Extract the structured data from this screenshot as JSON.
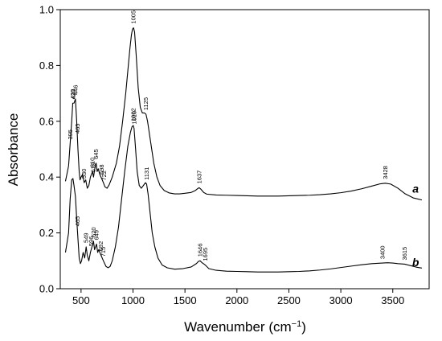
{
  "chart_data": {
    "type": "line",
    "xlabel": "Wavenumber (cm",
    "xlabel_sup": "−1",
    "xlabel_close": ")",
    "ylabel": "Absorbance",
    "xlim": [
      300,
      3850
    ],
    "ylim": [
      0.0,
      1.0
    ],
    "xticks": [
      {
        "value": 500,
        "label": "500"
      },
      {
        "value": 1000,
        "label": "1000"
      },
      {
        "value": 1500,
        "label": "1500"
      },
      {
        "value": 2000,
        "label": "2000"
      },
      {
        "value": 2500,
        "label": "2500"
      },
      {
        "value": 3000,
        "label": "3000"
      },
      {
        "value": 3500,
        "label": "3500"
      }
    ],
    "yticks": [
      {
        "value": 0.0,
        "label": "0.0"
      },
      {
        "value": 0.2,
        "label": "0.2"
      },
      {
        "value": 0.4,
        "label": "0.4"
      },
      {
        "value": 0.6,
        "label": "0.6"
      },
      {
        "value": 0.8,
        "label": "0.8"
      },
      {
        "value": 1.0,
        "label": "1.0"
      }
    ],
    "grid": false,
    "series": [
      {
        "name": "a",
        "label_position": [
          3720,
          0.345
        ],
        "points": [
          [
            350,
            0.385
          ],
          [
            380,
            0.44
          ],
          [
            395,
            0.52
          ],
          [
            410,
            0.6
          ],
          [
            420,
            0.665
          ],
          [
            432,
            0.665
          ],
          [
            446,
            0.68
          ],
          [
            458,
            0.6
          ],
          [
            470,
            0.5
          ],
          [
            482,
            0.42
          ],
          [
            490,
            0.39
          ],
          [
            500,
            0.4
          ],
          [
            515,
            0.41
          ],
          [
            530,
            0.38
          ],
          [
            545,
            0.39
          ],
          [
            560,
            0.36
          ],
          [
            575,
            0.37
          ],
          [
            590,
            0.4
          ],
          [
            610,
            0.42
          ],
          [
            620,
            0.4
          ],
          [
            632,
            0.43
          ],
          [
            645,
            0.45
          ],
          [
            655,
            0.42
          ],
          [
            665,
            0.43
          ],
          [
            680,
            0.41
          ],
          [
            698,
            0.395
          ],
          [
            715,
            0.38
          ],
          [
            730,
            0.365
          ],
          [
            750,
            0.36
          ],
          [
            770,
            0.372
          ],
          [
            800,
            0.4
          ],
          [
            840,
            0.45
          ],
          [
            870,
            0.51
          ],
          [
            900,
            0.6
          ],
          [
            930,
            0.7
          ],
          [
            950,
            0.78
          ],
          [
            970,
            0.86
          ],
          [
            985,
            0.91
          ],
          [
            995,
            0.93
          ],
          [
            1005,
            0.935
          ],
          [
            1015,
            0.92
          ],
          [
            1030,
            0.84
          ],
          [
            1050,
            0.72
          ],
          [
            1070,
            0.65
          ],
          [
            1090,
            0.63
          ],
          [
            1110,
            0.63
          ],
          [
            1125,
            0.625
          ],
          [
            1140,
            0.6
          ],
          [
            1160,
            0.55
          ],
          [
            1180,
            0.5
          ],
          [
            1200,
            0.45
          ],
          [
            1230,
            0.4
          ],
          [
            1260,
            0.37
          ],
          [
            1300,
            0.352
          ],
          [
            1350,
            0.343
          ],
          [
            1400,
            0.34
          ],
          [
            1450,
            0.34
          ],
          [
            1500,
            0.342
          ],
          [
            1560,
            0.345
          ],
          [
            1600,
            0.352
          ],
          [
            1620,
            0.358
          ],
          [
            1637,
            0.362
          ],
          [
            1655,
            0.356
          ],
          [
            1680,
            0.345
          ],
          [
            1710,
            0.339
          ],
          [
            1800,
            0.336
          ],
          [
            1900,
            0.335
          ],
          [
            2000,
            0.334
          ],
          [
            2100,
            0.333
          ],
          [
            2200,
            0.332
          ],
          [
            2300,
            0.332
          ],
          [
            2400,
            0.332
          ],
          [
            2500,
            0.333
          ],
          [
            2600,
            0.334
          ],
          [
            2700,
            0.335
          ],
          [
            2800,
            0.337
          ],
          [
            2900,
            0.34
          ],
          [
            3000,
            0.344
          ],
          [
            3100,
            0.35
          ],
          [
            3200,
            0.358
          ],
          [
            3300,
            0.368
          ],
          [
            3380,
            0.376
          ],
          [
            3428,
            0.378
          ],
          [
            3480,
            0.375
          ],
          [
            3550,
            0.36
          ],
          [
            3620,
            0.34
          ],
          [
            3700,
            0.325
          ],
          [
            3780,
            0.318
          ]
        ],
        "peaks": [
          {
            "x": 395,
            "label": "395"
          },
          {
            "x": 420,
            "label": "420"
          },
          {
            "x": 446,
            "label": "446"
          },
          {
            "x": 427,
            "label": "427"
          },
          {
            "x": 465,
            "label": "465"
          },
          {
            "x": 530,
            "label": "530"
          },
          {
            "x": 610,
            "label": "610"
          },
          {
            "x": 619,
            "label": "619"
          },
          {
            "x": 645,
            "label": "645"
          },
          {
            "x": 698,
            "label": "698"
          },
          {
            "x": 722,
            "label": "722"
          },
          {
            "x": 1005,
            "label": "1005"
          },
          {
            "x": 1125,
            "label": "1125"
          },
          {
            "x": 1637,
            "label": "1637"
          },
          {
            "x": 3428,
            "label": "3428"
          }
        ]
      },
      {
        "name": "b",
        "label_position": [
          3720,
          0.08
        ],
        "points": [
          [
            350,
            0.13
          ],
          [
            380,
            0.2
          ],
          [
            395,
            0.32
          ],
          [
            410,
            0.39
          ],
          [
            422,
            0.395
          ],
          [
            432,
            0.37
          ],
          [
            446,
            0.33
          ],
          [
            458,
            0.25
          ],
          [
            470,
            0.18
          ],
          [
            482,
            0.11
          ],
          [
            494,
            0.09
          ],
          [
            505,
            0.1
          ],
          [
            520,
            0.13
          ],
          [
            535,
            0.11
          ],
          [
            549,
            0.15
          ],
          [
            560,
            0.12
          ],
          [
            575,
            0.1
          ],
          [
            590,
            0.13
          ],
          [
            605,
            0.15
          ],
          [
            620,
            0.17
          ],
          [
            630,
            0.14
          ],
          [
            649,
            0.16
          ],
          [
            660,
            0.13
          ],
          [
            670,
            0.14
          ],
          [
            692,
            0.12
          ],
          [
            715,
            0.1
          ],
          [
            740,
            0.08
          ],
          [
            760,
            0.075
          ],
          [
            780,
            0.08
          ],
          [
            800,
            0.1
          ],
          [
            830,
            0.15
          ],
          [
            860,
            0.22
          ],
          [
            890,
            0.32
          ],
          [
            920,
            0.42
          ],
          [
            950,
            0.51
          ],
          [
            975,
            0.56
          ],
          [
            990,
            0.58
          ],
          [
            1002,
            0.585
          ],
          [
            1010,
            0.575
          ],
          [
            1025,
            0.5
          ],
          [
            1040,
            0.42
          ],
          [
            1060,
            0.37
          ],
          [
            1080,
            0.36
          ],
          [
            1100,
            0.37
          ],
          [
            1120,
            0.38
          ],
          [
            1131,
            0.375
          ],
          [
            1145,
            0.34
          ],
          [
            1165,
            0.27
          ],
          [
            1185,
            0.2
          ],
          [
            1210,
            0.15
          ],
          [
            1240,
            0.11
          ],
          [
            1280,
            0.085
          ],
          [
            1330,
            0.075
          ],
          [
            1400,
            0.07
          ],
          [
            1480,
            0.072
          ],
          [
            1560,
            0.078
          ],
          [
            1610,
            0.09
          ],
          [
            1630,
            0.098
          ],
          [
            1646,
            0.1
          ],
          [
            1665,
            0.093
          ],
          [
            1695,
            0.085
          ],
          [
            1730,
            0.072
          ],
          [
            1800,
            0.066
          ],
          [
            1900,
            0.063
          ],
          [
            2000,
            0.062
          ],
          [
            2100,
            0.061
          ],
          [
            2200,
            0.06
          ],
          [
            2300,
            0.06
          ],
          [
            2400,
            0.06
          ],
          [
            2500,
            0.061
          ],
          [
            2600,
            0.062
          ],
          [
            2700,
            0.064
          ],
          [
            2800,
            0.067
          ],
          [
            2900,
            0.071
          ],
          [
            3000,
            0.076
          ],
          [
            3100,
            0.081
          ],
          [
            3200,
            0.086
          ],
          [
            3300,
            0.09
          ],
          [
            3400,
            0.092
          ],
          [
            3450,
            0.093
          ],
          [
            3500,
            0.092
          ],
          [
            3550,
            0.09
          ],
          [
            3615,
            0.088
          ],
          [
            3680,
            0.082
          ],
          [
            3730,
            0.077
          ],
          [
            3780,
            0.074
          ]
        ],
        "peaks": [
          {
            "x": 465,
            "label": "465"
          },
          {
            "x": 549,
            "label": "549"
          },
          {
            "x": 596,
            "label": "596"
          },
          {
            "x": 620,
            "label": "620"
          },
          {
            "x": 649,
            "label": "649"
          },
          {
            "x": 692,
            "label": "692"
          },
          {
            "x": 715,
            "label": "715"
          },
          {
            "x": 1002,
            "label": "1002"
          },
          {
            "x": 1010,
            "label": "1010"
          },
          {
            "x": 1131,
            "label": "1131"
          },
          {
            "x": 1646,
            "label": "1646"
          },
          {
            "x": 1695,
            "label": "1695"
          },
          {
            "x": 3400,
            "label": "3400"
          },
          {
            "x": 3615,
            "label": "3615"
          }
        ]
      }
    ]
  }
}
